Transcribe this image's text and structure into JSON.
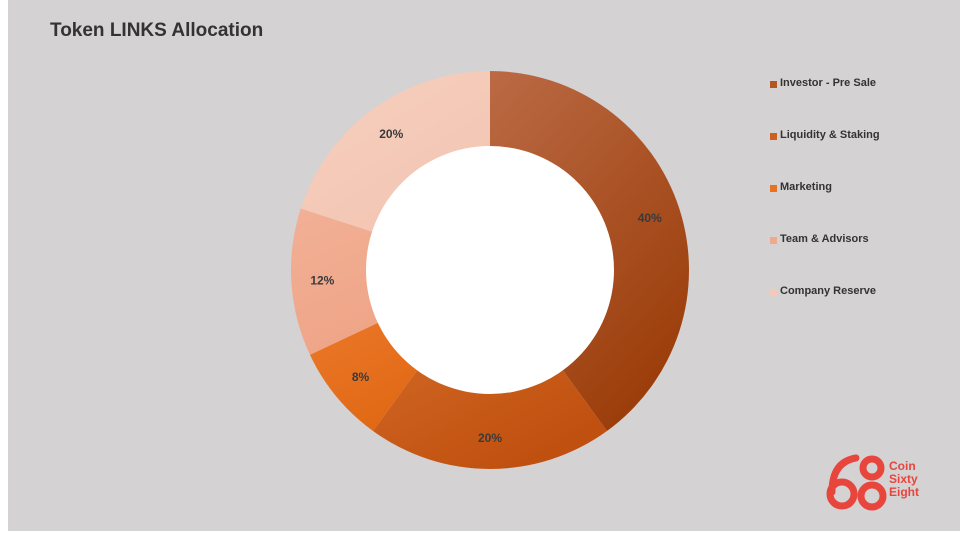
{
  "title": "Token LINKS Allocation",
  "chart_data": {
    "type": "pie",
    "title": "Token LINKS Allocation",
    "donut": true,
    "categories": [
      "Investor - Pre Sale",
      "Liquidity & Staking",
      "Marketing",
      "Team & Advisors",
      "Company Reserve"
    ],
    "values": [
      40,
      20,
      8,
      12,
      20
    ],
    "data_labels": [
      "40%",
      "20%",
      "8%",
      "12%",
      "20%"
    ],
    "colors": [
      "#b4561f",
      "#cf5f1c",
      "#e8721f",
      "#f0a98b",
      "#f5c9b7"
    ],
    "gradient_light": [
      "#bb6a45",
      "#d8702c",
      "#ee7d2f",
      "#f2b096",
      "#f6cfbe"
    ],
    "gradient_dark": [
      "#9c3e0b",
      "#c0500f",
      "#df6612",
      "#eea284",
      "#f3c4b1"
    ],
    "legend_position": "right"
  },
  "logo": {
    "lines": [
      "Coin",
      "Sixty",
      "Eight"
    ],
    "color": "#e8453c"
  }
}
